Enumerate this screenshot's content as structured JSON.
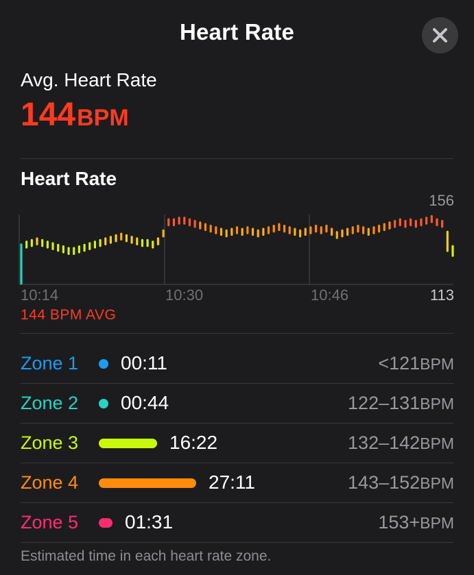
{
  "header": {
    "title": "Heart Rate",
    "close_icon": "close-icon"
  },
  "summary": {
    "label": "Avg. Heart Rate",
    "value": "144",
    "unit": "BPM",
    "color": "#ff3b1f"
  },
  "chart": {
    "title": "Heart Rate",
    "max_label": "156",
    "min_label": "113",
    "x_ticks": [
      "10:14",
      "10:30",
      "10:46"
    ],
    "avg_caption": "144 BPM AVG"
  },
  "chart_data": {
    "type": "bar",
    "title": "Heart Rate",
    "xlabel": "",
    "ylabel": "",
    "ylim": [
      113,
      156
    ],
    "x_tick_labels": [
      "10:14",
      "10:30",
      "10:46"
    ],
    "average": 144,
    "grid": true,
    "values": [
      124,
      138,
      139,
      140,
      139,
      138,
      137,
      136,
      135,
      134,
      134,
      135,
      136,
      137,
      138,
      139,
      140,
      141,
      142,
      143,
      142,
      141,
      140,
      139,
      139,
      138,
      140,
      145,
      152,
      152,
      153,
      153,
      152,
      151,
      150,
      149,
      148,
      147,
      146,
      145,
      146,
      147,
      146,
      147,
      146,
      145,
      146,
      147,
      148,
      149,
      148,
      147,
      146,
      145,
      146,
      147,
      148,
      147,
      148,
      146,
      144,
      145,
      146,
      147,
      148,
      147,
      146,
      147,
      148,
      149,
      150,
      151,
      152,
      151,
      152,
      151,
      152,
      153,
      154,
      152,
      151,
      140,
      134
    ]
  },
  "zones": [
    {
      "name": "Zone 1",
      "time": "00:11",
      "range": "<121",
      "unit": "BPM",
      "color": "#1d9bf0",
      "fraction": 0.0
    },
    {
      "name": "Zone 2",
      "time": "00:44",
      "range": "122–131",
      "unit": "BPM",
      "color": "#27d3c2",
      "fraction": 0.0
    },
    {
      "name": "Zone 3",
      "time": "16:22",
      "range": "132–142",
      "unit": "BPM",
      "color": "#c9f80b",
      "fraction": 0.6
    },
    {
      "name": "Zone 4",
      "time": "27:11",
      "range": "143–152",
      "unit": "BPM",
      "color": "#ff8c0a",
      "fraction": 1.0
    },
    {
      "name": "Zone 5",
      "time": "01:31",
      "range": "153+",
      "unit": "BPM",
      "color": "#ff2d6f",
      "fraction": 0.05
    }
  ],
  "footnote": "Estimated time in each heart rate zone."
}
